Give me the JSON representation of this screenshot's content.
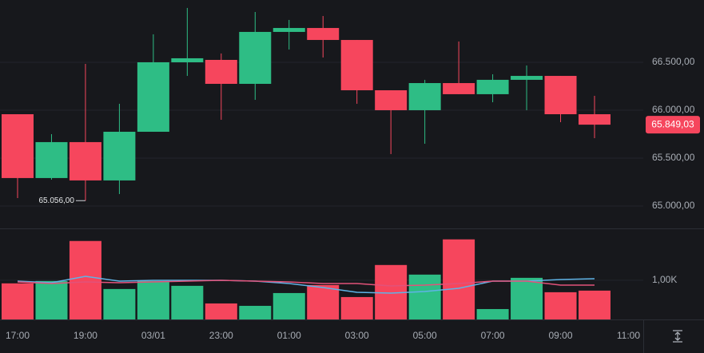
{
  "chart_data": [
    {
      "type": "candlestick",
      "categories": [
        "17:00",
        null,
        "19:00",
        null,
        "03/01",
        null,
        "23:00",
        null,
        "01:00",
        null,
        "03:00",
        null,
        "05:00",
        null,
        "07:00",
        null,
        "09:00",
        null,
        "11:00"
      ],
      "open": [
        65958,
        65292,
        65667,
        65267,
        65775,
        66500,
        66525,
        66275,
        66817,
        66858,
        66733,
        66208,
        66000,
        66283,
        66167,
        66317,
        66358,
        65958,
        null
      ],
      "high": [
        65958,
        65750,
        66483,
        66067,
        66792,
        67067,
        66592,
        67025,
        66942,
        66983,
        66733,
        66208,
        66317,
        66717,
        66375,
        66467,
        66358,
        66150,
        null
      ],
      "low": [
        65083,
        65275,
        65056,
        65125,
        65775,
        66358,
        65900,
        66108,
        66633,
        66550,
        66067,
        65542,
        65650,
        66167,
        66083,
        66000,
        65875,
        65708,
        null
      ],
      "close": [
        65292,
        65667,
        65267,
        65775,
        66500,
        66542,
        66275,
        66817,
        66858,
        66733,
        66208,
        66000,
        66283,
        66167,
        66317,
        66358,
        65958,
        65849,
        null
      ],
      "up_color": "#2ebd85",
      "down_color": "#f6465d",
      "ylim": [
        64758,
        67150
      ],
      "yticks": [
        {
          "value": 65000,
          "label": "65.000,00"
        },
        {
          "value": 65500,
          "label": "65.500,00"
        },
        {
          "value": 66000,
          "label": "66.000,00"
        },
        {
          "value": 66500,
          "label": "66.500,00"
        }
      ],
      "grid": true,
      "last_price": {
        "value": 65849.03,
        "label": "65.849,03"
      },
      "low_annotation": {
        "value": 65056,
        "label": "65.056,00"
      }
    },
    {
      "type": "volume",
      "values": [
        920,
        980,
        2000,
        776,
        980,
        857,
        408,
        347,
        673,
        878,
        571,
        1388,
        1143,
        2041,
        265,
        1061,
        694,
        735,
        null
      ],
      "colors": [
        "#f6465d",
        "#2ebd85",
        "#f6465d",
        "#2ebd85",
        "#2ebd85",
        "#2ebd85",
        "#f6465d",
        "#2ebd85",
        "#2ebd85",
        "#f6465d",
        "#f6465d",
        "#f6465d",
        "#2ebd85",
        "#f6465d",
        "#2ebd85",
        "#2ebd85",
        "#f6465d",
        "#f6465d",
        null
      ],
      "lines": [
        {
          "color": "#5fb3e6",
          "values": [
            977,
            936,
            1099,
            977,
            997,
            997,
            997,
            977,
            916,
            814,
            692,
            672,
            712,
            794,
            977,
            977,
            1018,
            1038,
            null
          ]
        },
        {
          "color": "#e2527a",
          "values": [
            957,
            916,
            957,
            936,
            957,
            977,
            997,
            977,
            957,
            916,
            916,
            855,
            875,
            916,
            977,
            977,
            875,
            875,
            null
          ]
        }
      ],
      "ylim": [
        0,
        2300
      ],
      "yticks": [
        {
          "value": 1000,
          "label": "1,00K"
        }
      ]
    }
  ]
}
